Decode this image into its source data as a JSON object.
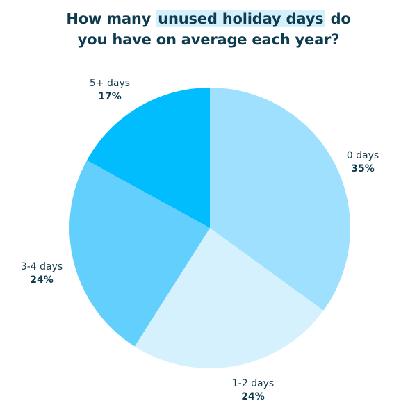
{
  "title": {
    "before": "How many ",
    "highlight": "unused holiday days",
    "after": " do",
    "line2": "you have on average each year?"
  },
  "chart_data": {
    "type": "pie",
    "title": "How many unused holiday days do you have on average each year?",
    "start_angle_deg": 0,
    "direction": "clockwise",
    "slices": [
      {
        "label": "0 days",
        "value": 35,
        "value_label": "35%",
        "color": "#9ee0fd"
      },
      {
        "label": "1-2 days",
        "value": 24,
        "value_label": "24%",
        "color": "#d4f1fd"
      },
      {
        "label": "3-4 days",
        "value": 24,
        "value_label": "24%",
        "color": "#63cffd"
      },
      {
        "label": "5+ days",
        "value": 17,
        "value_label": "17%",
        "color": "#02bdfd"
      }
    ]
  }
}
